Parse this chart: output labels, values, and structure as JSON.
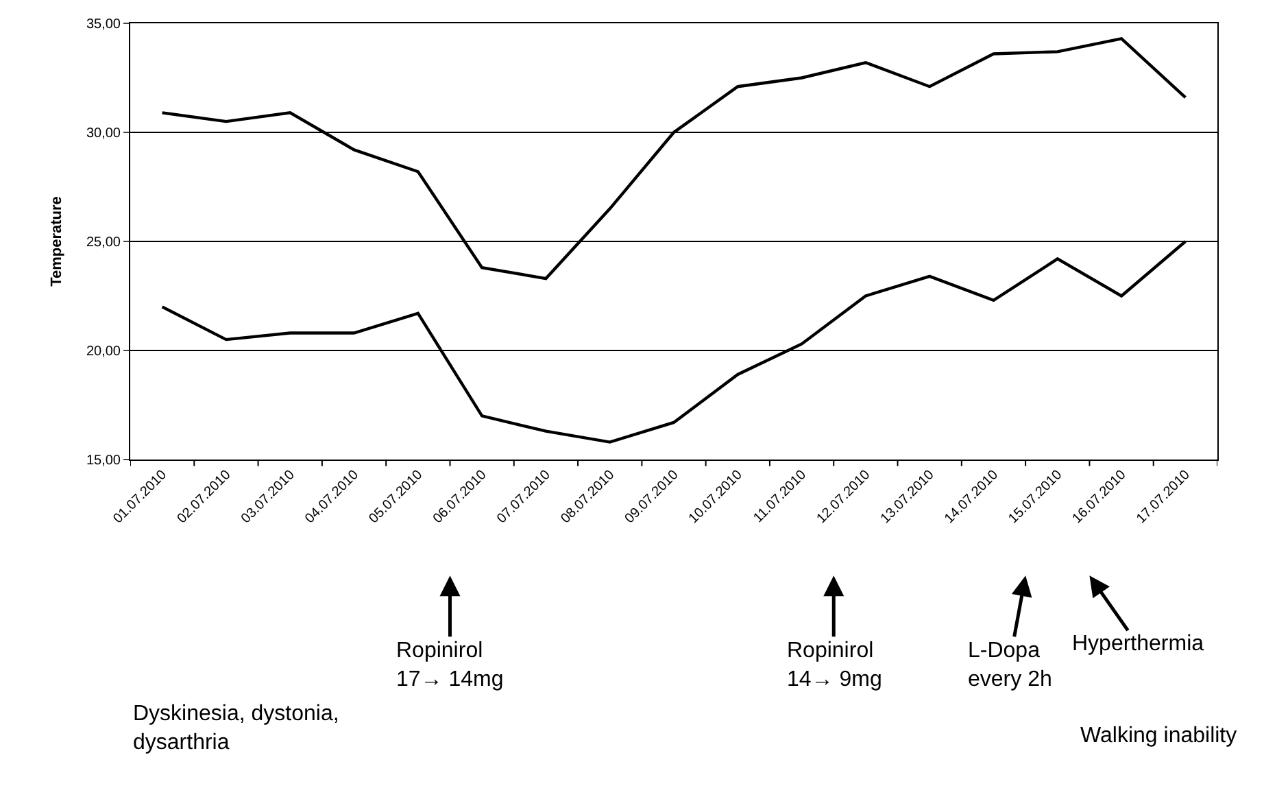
{
  "chart_data": {
    "type": "line",
    "ylabel": "Temperature",
    "categories": [
      "01.07.2010",
      "02.07.2010",
      "03.07.2010",
      "04.07.2010",
      "05.07.2010",
      "06.07.2010",
      "07.07.2010",
      "08.07.2010",
      "09.07.2010",
      "10.07.2010",
      "11.07.2010",
      "12.07.2010",
      "13.07.2010",
      "14.07.2010",
      "15.07.2010",
      "16.07.2010",
      "17.07.2010"
    ],
    "series": [
      {
        "color": "#000000",
        "values": [
          30.9,
          30.5,
          30.9,
          29.2,
          28.2,
          23.8,
          23.3,
          26.5,
          30.0,
          32.1,
          32.5,
          33.2,
          32.1,
          33.6,
          33.7,
          34.3,
          31.6
        ]
      },
      {
        "color": "#000000",
        "values": [
          22.0,
          20.5,
          20.8,
          20.8,
          21.7,
          17.0,
          16.3,
          15.8,
          16.7,
          18.9,
          20.3,
          22.5,
          23.4,
          22.3,
          24.2,
          22.5,
          25.0
        ]
      }
    ],
    "ylim": [
      15,
      35
    ],
    "yticks": [
      {
        "value": 15,
        "label": "15,00"
      },
      {
        "value": 20,
        "label": "20,00"
      },
      {
        "value": 25,
        "label": "25,00"
      },
      {
        "value": 30,
        "label": "30,00"
      },
      {
        "value": 35,
        "label": "35,00"
      }
    ],
    "grid": "y",
    "marker": "none",
    "line_style": "solid",
    "annotations": [
      {
        "text": "Ropinirol\n17→ 14mg"
      },
      {
        "text": "Ropinirol\n14→ 9mg"
      },
      {
        "text": "L-Dopa\nevery 2h"
      },
      {
        "text": "Hyperthermia"
      },
      {
        "text": "Dyskinesia, dystonia,\ndysarthria"
      },
      {
        "text": "Walking inability"
      }
    ]
  }
}
